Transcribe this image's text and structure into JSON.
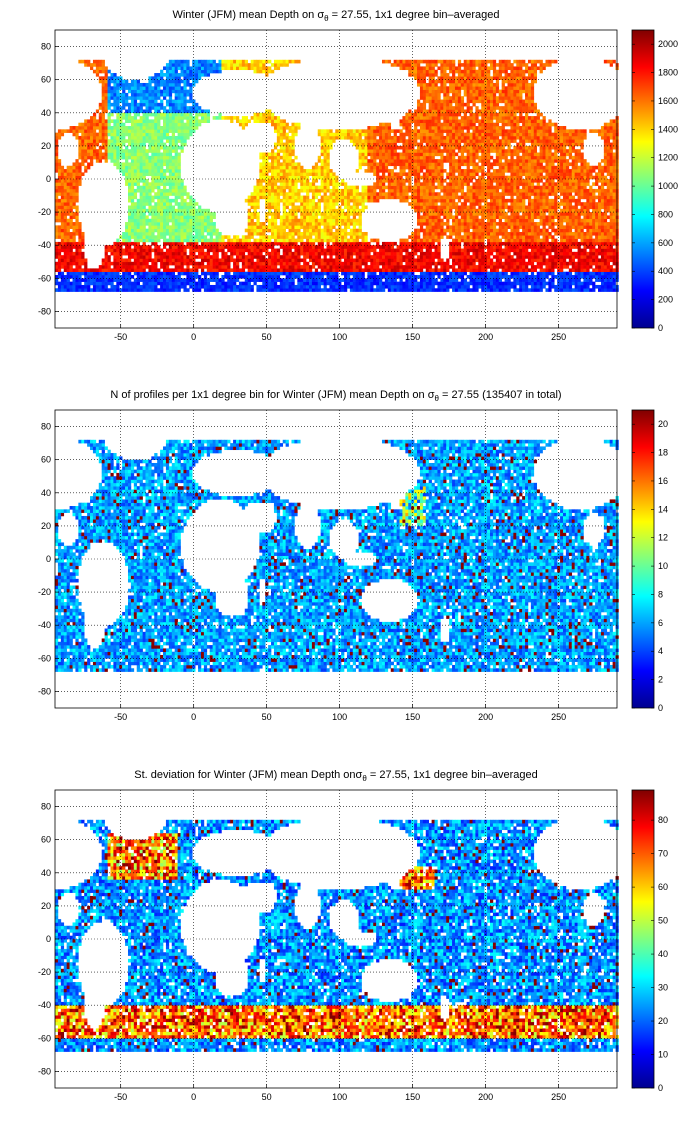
{
  "chart_data": [
    {
      "type": "heatmap",
      "title_parts": {
        "pre": "Winter (JFM) mean Depth on σ",
        "sub": "θ",
        "post": " = 27.55, 1x1 degree bin–averaged"
      },
      "xlim": [
        -95,
        290
      ],
      "ylim": [
        -90,
        90
      ],
      "xticks": [
        -50,
        0,
        50,
        100,
        150,
        200,
        250
      ],
      "yticks": [
        -80,
        -60,
        -40,
        -20,
        0,
        20,
        40,
        60,
        80
      ],
      "grid": true,
      "colorbar": {
        "min": 0,
        "max": 2100,
        "ticks": [
          0,
          200,
          400,
          600,
          800,
          1000,
          1200,
          1400,
          1600,
          1800,
          2000
        ]
      }
    },
    {
      "type": "heatmap",
      "title_parts": {
        "pre": "N of profiles per 1x1 degree bin for Winter (JFM) mean Depth on σ",
        "sub": "θ",
        "post": " = 27.55 (135407 in total)"
      },
      "xlim": [
        -95,
        290
      ],
      "ylim": [
        -90,
        90
      ],
      "xticks": [
        -50,
        0,
        50,
        100,
        150,
        200,
        250
      ],
      "yticks": [
        -80,
        -60,
        -40,
        -20,
        0,
        20,
        40,
        60,
        80
      ],
      "grid": true,
      "colorbar": {
        "min": 0,
        "max": 21,
        "ticks": [
          0,
          2,
          4,
          6,
          8,
          10,
          12,
          14,
          16,
          18,
          20
        ]
      }
    },
    {
      "type": "heatmap",
      "title_parts": {
        "pre": "St. deviation for Winter (JFM) mean Depth onσ",
        "sub": "θ",
        "post": " = 27.55, 1x1 degree bin–averaged"
      },
      "xlim": [
        -95,
        290
      ],
      "ylim": [
        -90,
        90
      ],
      "xticks": [
        -50,
        0,
        50,
        100,
        150,
        200,
        250
      ],
      "yticks": [
        -80,
        -60,
        -40,
        -20,
        0,
        20,
        40,
        60,
        80
      ],
      "grid": true,
      "colorbar": {
        "min": 0,
        "max": 89,
        "ticks": [
          0,
          10,
          20,
          30,
          40,
          50,
          60,
          70,
          80
        ]
      }
    }
  ]
}
